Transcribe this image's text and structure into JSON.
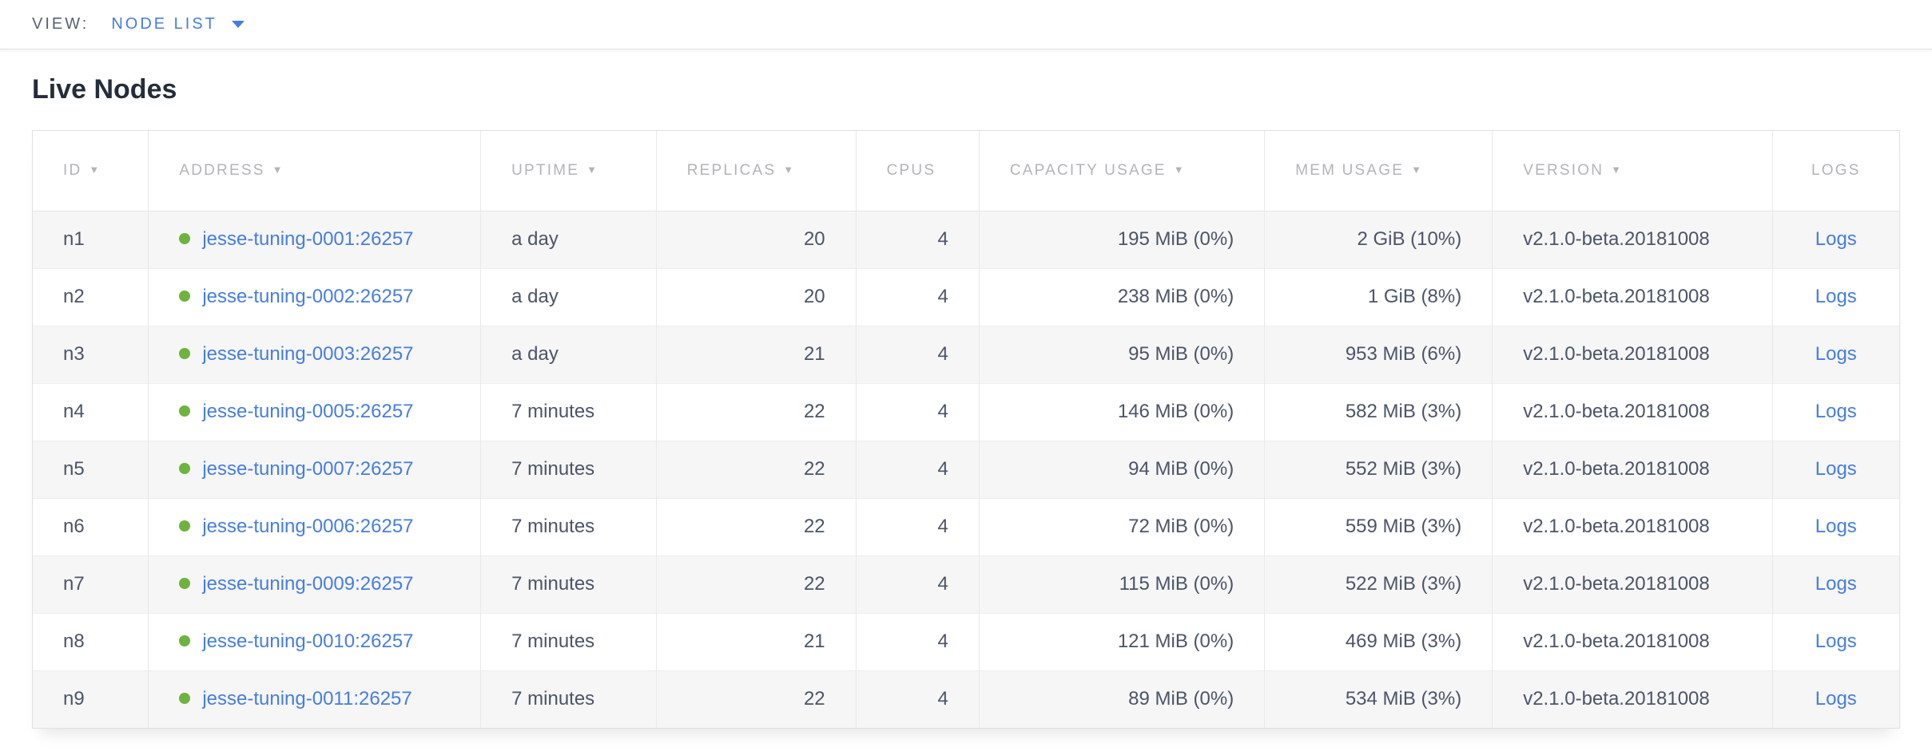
{
  "view_bar": {
    "label": "VIEW:",
    "selected": "NODE LIST"
  },
  "page": {
    "title": "Live Nodes"
  },
  "colors": {
    "link_blue": "#467de2",
    "live_status_green": "#6fb33f",
    "header_gray": "#b2b4b8"
  },
  "table": {
    "columns": [
      {
        "key": "id",
        "label": "ID",
        "sortable": true,
        "align": "left"
      },
      {
        "key": "address",
        "label": "ADDRESS",
        "sortable": true,
        "align": "left"
      },
      {
        "key": "uptime",
        "label": "UPTIME",
        "sortable": true,
        "align": "left"
      },
      {
        "key": "replicas",
        "label": "REPLICAS",
        "sortable": true,
        "align": "right"
      },
      {
        "key": "cpus",
        "label": "CPUS",
        "sortable": false,
        "align": "right"
      },
      {
        "key": "capacity_usage",
        "label": "CAPACITY USAGE",
        "sortable": true,
        "align": "right"
      },
      {
        "key": "mem_usage",
        "label": "MEM USAGE",
        "sortable": true,
        "align": "right"
      },
      {
        "key": "version",
        "label": "VERSION",
        "sortable": true,
        "align": "left"
      },
      {
        "key": "logs",
        "label": "LOGS",
        "sortable": false,
        "align": "center"
      }
    ],
    "rows": [
      {
        "id": "n1",
        "address": "jesse-tuning-0001:26257",
        "status": "live",
        "uptime": "a day",
        "replicas": "20",
        "cpus": "4",
        "capacity_usage": "195 MiB (0%)",
        "mem_usage": "2 GiB (10%)",
        "version": "v2.1.0-beta.20181008",
        "logs": "Logs"
      },
      {
        "id": "n2",
        "address": "jesse-tuning-0002:26257",
        "status": "live",
        "uptime": "a day",
        "replicas": "20",
        "cpus": "4",
        "capacity_usage": "238 MiB (0%)",
        "mem_usage": "1 GiB (8%)",
        "version": "v2.1.0-beta.20181008",
        "logs": "Logs"
      },
      {
        "id": "n3",
        "address": "jesse-tuning-0003:26257",
        "status": "live",
        "uptime": "a day",
        "replicas": "21",
        "cpus": "4",
        "capacity_usage": "95 MiB (0%)",
        "mem_usage": "953 MiB (6%)",
        "version": "v2.1.0-beta.20181008",
        "logs": "Logs"
      },
      {
        "id": "n4",
        "address": "jesse-tuning-0005:26257",
        "status": "live",
        "uptime": "7 minutes",
        "replicas": "22",
        "cpus": "4",
        "capacity_usage": "146 MiB (0%)",
        "mem_usage": "582 MiB (3%)",
        "version": "v2.1.0-beta.20181008",
        "logs": "Logs"
      },
      {
        "id": "n5",
        "address": "jesse-tuning-0007:26257",
        "status": "live",
        "uptime": "7 minutes",
        "replicas": "22",
        "cpus": "4",
        "capacity_usage": "94 MiB (0%)",
        "mem_usage": "552 MiB (3%)",
        "version": "v2.1.0-beta.20181008",
        "logs": "Logs"
      },
      {
        "id": "n6",
        "address": "jesse-tuning-0006:26257",
        "status": "live",
        "uptime": "7 minutes",
        "replicas": "22",
        "cpus": "4",
        "capacity_usage": "72 MiB (0%)",
        "mem_usage": "559 MiB (3%)",
        "version": "v2.1.0-beta.20181008",
        "logs": "Logs"
      },
      {
        "id": "n7",
        "address": "jesse-tuning-0009:26257",
        "status": "live",
        "uptime": "7 minutes",
        "replicas": "22",
        "cpus": "4",
        "capacity_usage": "115 MiB (0%)",
        "mem_usage": "522 MiB (3%)",
        "version": "v2.1.0-beta.20181008",
        "logs": "Logs"
      },
      {
        "id": "n8",
        "address": "jesse-tuning-0010:26257",
        "status": "live",
        "uptime": "7 minutes",
        "replicas": "21",
        "cpus": "4",
        "capacity_usage": "121 MiB (0%)",
        "mem_usage": "469 MiB (3%)",
        "version": "v2.1.0-beta.20181008",
        "logs": "Logs"
      },
      {
        "id": "n9",
        "address": "jesse-tuning-0011:26257",
        "status": "live",
        "uptime": "7 minutes",
        "replicas": "22",
        "cpus": "4",
        "capacity_usage": "89 MiB (0%)",
        "mem_usage": "534 MiB (3%)",
        "version": "v2.1.0-beta.20181008",
        "logs": "Logs"
      }
    ]
  }
}
